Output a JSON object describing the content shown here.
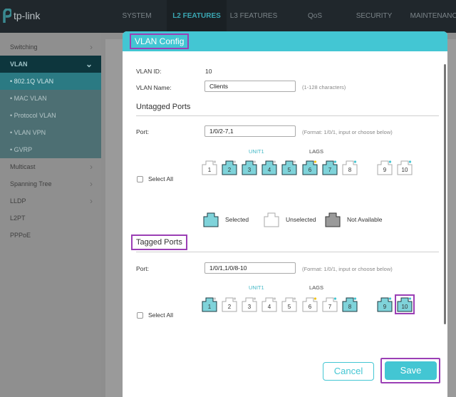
{
  "topbar": {
    "brand": "tp-link",
    "nav": [
      "SYSTEM",
      "L2 FEATURES",
      "L3 FEATURES",
      "QoS",
      "SECURITY",
      "MAINTENANCE"
    ],
    "active": "L2 FEATURES"
  },
  "sidebar": {
    "items": [
      {
        "label": "Switching",
        "chevron": ">"
      },
      {
        "label": "VLAN",
        "chevron": "v"
      },
      {
        "label": "• 802.1Q VLAN"
      },
      {
        "label": "• MAC VLAN"
      },
      {
        "label": "• Protocol VLAN"
      },
      {
        "label": "• VLAN VPN"
      },
      {
        "label": "• GVRP"
      },
      {
        "label": "Multicast",
        "chevron": ">"
      },
      {
        "label": "Spanning Tree",
        "chevron": ">"
      },
      {
        "label": "LLDP",
        "chevron": ">"
      },
      {
        "label": "L2PT"
      },
      {
        "label": "PPPoE"
      }
    ]
  },
  "dialog": {
    "title": "VLAN Config",
    "vlan_id_label": "VLAN ID:",
    "vlan_id": "10",
    "vlan_name_label": "VLAN Name:",
    "vlan_name": "Clients",
    "vlan_name_hint": "(1-128 characters)",
    "untagged": {
      "title": "Untagged Ports",
      "port_label": "Port:",
      "port_value": "1/0/2-7,1",
      "hint": "(Format: 1/0/1, input or choose below)",
      "unit": "UNIT1",
      "lags": "LAGS",
      "select_all": "Select All",
      "ports": [
        {
          "n": "1",
          "sel": false,
          "dot": "gray"
        },
        {
          "n": "2",
          "sel": true,
          "dot": "gray"
        },
        {
          "n": "3",
          "sel": true,
          "dot": "gray"
        },
        {
          "n": "4",
          "sel": true,
          "dot": "gray"
        },
        {
          "n": "5",
          "sel": true,
          "dot": "gray"
        },
        {
          "n": "6",
          "sel": true,
          "dot": "yellow"
        },
        {
          "n": "7",
          "sel": true,
          "dot": "teal"
        },
        {
          "n": "8",
          "sel": false,
          "dot": "teal"
        },
        {
          "n": "9",
          "sel": false,
          "dot": "teal"
        },
        {
          "n": "10",
          "sel": false,
          "dot": "teal"
        }
      ]
    },
    "legend": {
      "selected": "Selected",
      "unselected": "Unselected",
      "not_available": "Not Available"
    },
    "tagged": {
      "title": "Tagged Ports",
      "port_label": "Port:",
      "port_value": "1/0/1,1/0/8-10",
      "hint": "(Format: 1/0/1, input or choose below)",
      "unit": "UNIT1",
      "lags": "LAGS",
      "select_all": "Select All",
      "ports": [
        {
          "n": "1",
          "sel": true,
          "dot": "gray"
        },
        {
          "n": "2",
          "sel": false,
          "dot": "gray"
        },
        {
          "n": "3",
          "sel": false,
          "dot": "gray"
        },
        {
          "n": "4",
          "sel": false,
          "dot": "gray"
        },
        {
          "n": "5",
          "sel": false,
          "dot": "gray"
        },
        {
          "n": "6",
          "sel": false,
          "dot": "yellow"
        },
        {
          "n": "7",
          "sel": false,
          "dot": "teal"
        },
        {
          "n": "8",
          "sel": true,
          "dot": "teal"
        },
        {
          "n": "9",
          "sel": true,
          "dot": "teal"
        },
        {
          "n": "10",
          "sel": true,
          "dot": "teal"
        }
      ]
    },
    "cancel": "Cancel",
    "save": "Save"
  },
  "colors": {
    "accent": "#43c6d3",
    "highlight": "#9b3fb5",
    "selected_port": "#7fd3da",
    "yellow_dot": "#f2c418"
  }
}
